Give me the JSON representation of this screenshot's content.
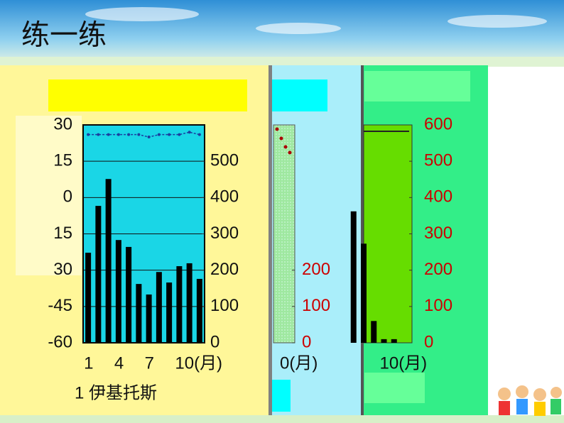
{
  "slide_title": "练一练",
  "chart_data": [
    {
      "type": "bar",
      "title": "1 伊基托斯",
      "categories": [
        "1",
        null,
        null,
        "4",
        null,
        null,
        "7",
        null,
        null,
        "10(月)",
        null,
        null
      ],
      "ylim": [
        -60,
        30
      ],
      "yticks": [
        30,
        {
          "value": 15,
          "label": "15"
        },
        0,
        {
          "value": -15,
          "label": "15"
        },
        {
          "value": -30,
          "label": "30"
        },
        -45,
        -60
      ],
      "y2lim": [
        0,
        600
      ],
      "y2ticks": [
        0,
        100,
        200,
        300,
        400,
        500
      ],
      "grid": true,
      "series": [
        {
          "type": "bar",
          "axis": "y2",
          "color": "#000000",
          "values": [
            248,
            377,
            451,
            283,
            264,
            162,
            133,
            195,
            166,
            211,
            219,
            176
          ]
        },
        {
          "type": "line",
          "axis": "y",
          "color": "#1a3fa0",
          "values": [
            26,
            26,
            26,
            26,
            26,
            26,
            25,
            26,
            26,
            26,
            27,
            26
          ]
        }
      ]
    },
    {
      "type": "bar",
      "categories": [
        "0(月)"
      ],
      "y2lim": [
        0,
        600
      ],
      "y2ticks": [
        0,
        100,
        200
      ],
      "tick_color": "#cc0000"
    },
    {
      "type": "bar",
      "categories": [
        null,
        null,
        null,
        "10(月)",
        null
      ],
      "y2lim": [
        0,
        600
      ],
      "y2ticks": [
        0,
        100,
        200,
        300,
        400,
        500,
        600
      ],
      "tick_color": "#cc0000",
      "grid": true,
      "series": [
        {
          "type": "bar",
          "axis": "y2",
          "color": "#000000",
          "values": [
            362,
            273,
            60,
            10,
            10
          ]
        }
      ]
    }
  ]
}
